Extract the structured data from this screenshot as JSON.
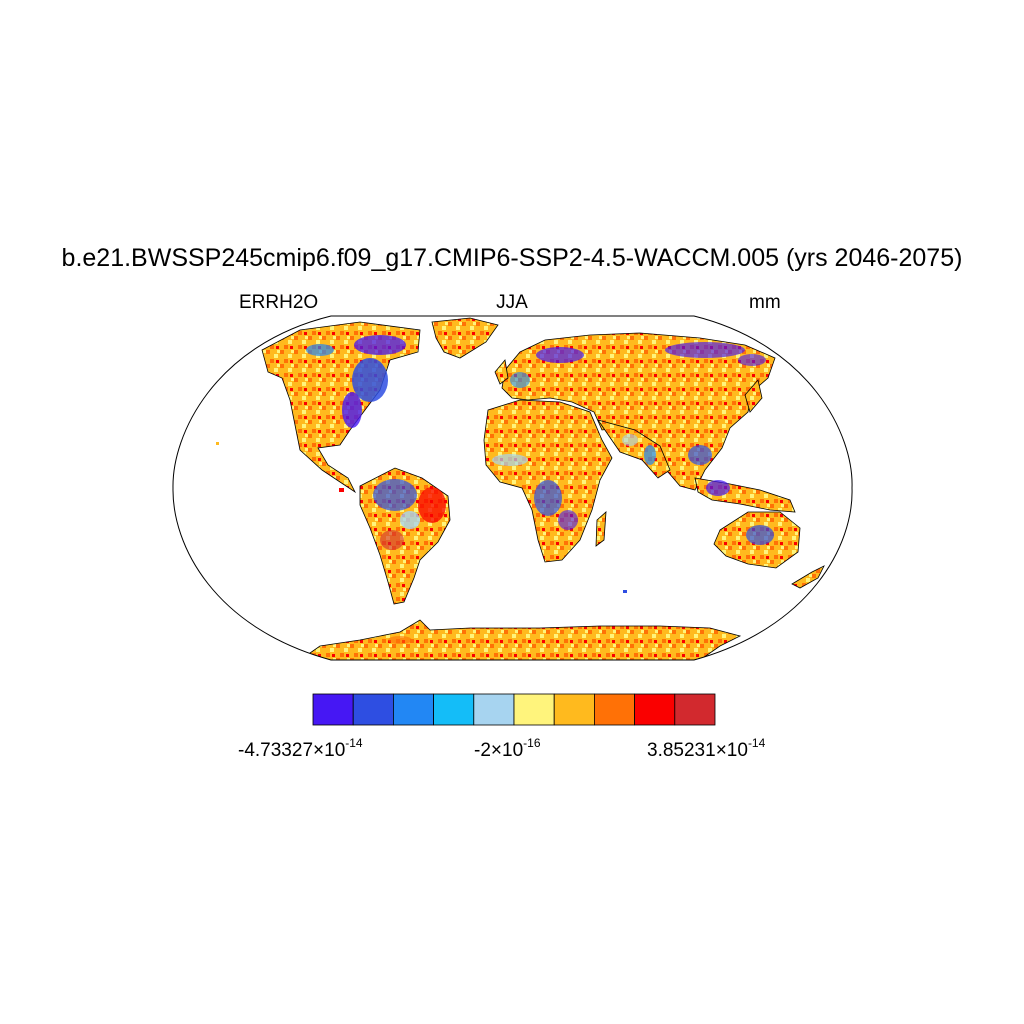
{
  "figure": {
    "title": "b.e21.BWSSP245cmip6.f09_g17.CMIP6-SSP2-4.5-WACCM.005 (yrs 2046-2075)",
    "left_label": "ERRH2O",
    "center_label": "JJA",
    "right_label": "mm"
  },
  "map": {
    "projection": "Robinson",
    "variable": "ERRH2O",
    "season": "JJA",
    "units": "mm",
    "ocean_color": "#ffffff",
    "dominant_land_color": "#ffba1e",
    "coastline_color": "#000000"
  },
  "colorbar": {
    "colors": [
      "#4617f4",
      "#2e4ee2",
      "#2287f4",
      "#14bdf8",
      "#a7d4f0",
      "#fff47c",
      "#ffba1e",
      "#ff7106",
      "#fa0000",
      "#d2292e"
    ],
    "labels": [
      {
        "mantissa": "-4.73327",
        "times": "×",
        "base": "10",
        "exponent": "-14"
      },
      {
        "mantissa": "-2",
        "times": "×",
        "base": "10",
        "exponent": "-16"
      },
      {
        "mantissa": "3.85231",
        "times": "×",
        "base": "10",
        "exponent": "-14"
      }
    ]
  }
}
